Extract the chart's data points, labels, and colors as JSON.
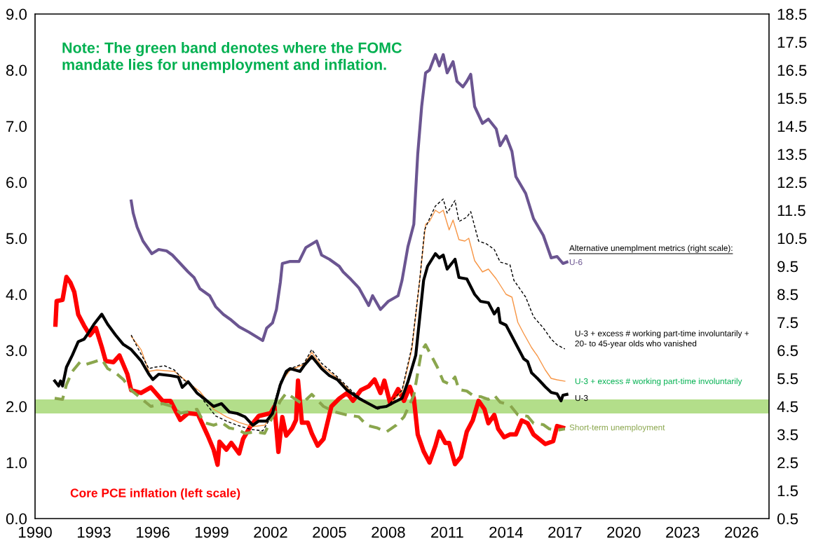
{
  "chart_data": {
    "type": "line",
    "annotations": [
      "Note: The green band denotes where the FOMC mandate lies for unemployment and inflation.",
      "Alternative unemplment metrics (right scale):"
    ],
    "xlim": [
      1990,
      2027.4
    ],
    "xticks": [
      1990,
      1993,
      1996,
      1999,
      2002,
      2005,
      2008,
      2011,
      2014,
      2017,
      2020,
      2023,
      2026
    ],
    "ylim": [
      0,
      9
    ],
    "yticks": [
      {
        "value": 0,
        "label": "0.0"
      },
      {
        "value": 1,
        "label": "1.0"
      },
      {
        "value": 2,
        "label": "2.0"
      },
      {
        "value": 3,
        "label": "3.0"
      },
      {
        "value": 4,
        "label": "4.0"
      },
      {
        "value": 5,
        "label": "5.0"
      },
      {
        "value": 6,
        "label": "6.0"
      },
      {
        "value": 7,
        "label": "7.0"
      },
      {
        "value": 8,
        "label": "8.0"
      },
      {
        "value": 9,
        "label": "9.0"
      }
    ],
    "y2lim": [
      0.5,
      18.5
    ],
    "y2ticks": [
      0.5,
      1.5,
      2.5,
      3.5,
      4.5,
      5.5,
      6.5,
      7.5,
      8.5,
      9.5,
      10.5,
      11.5,
      12.5,
      13.5,
      14.5,
      15.5,
      16.5,
      17.5,
      18.5
    ],
    "grid": false,
    "legend": false,
    "bands": [
      {
        "axis": "y",
        "from": 1.875,
        "to": 2.125,
        "color": "#b3de8a"
      }
    ],
    "series": [
      {
        "name": "Core PCE inflation (left scale)",
        "color": "#ff0000",
        "x": [
          1991.04,
          1991.1,
          1991.4,
          1991.6,
          1991.8,
          1992.0,
          1992.2,
          1992.5,
          1992.8,
          1993.1,
          1993.4,
          1993.6,
          1994.0,
          1994.3,
          1994.7,
          1994.9,
          1995.4,
          1995.9,
          1996.5,
          1996.9,
          1997.4,
          1997.8,
          1998.3,
          1998.8,
          1999.1,
          1999.3,
          1999.4,
          1999.75,
          2000.0,
          2000.4,
          2000.6,
          2001.0,
          2001.4,
          2002.0,
          2002.2,
          2002.4,
          2002.6,
          2002.8,
          2003.1,
          2003.3,
          2003.4,
          2003.6,
          2003.9,
          2004.1,
          2004.4,
          2004.7,
          2005.1,
          2005.5,
          2005.9,
          2006.2,
          2006.6,
          2007.0,
          2007.3,
          2007.6,
          2007.8,
          2008.1,
          2008.5,
          2008.8,
          2009.1,
          2009.3,
          2009.5,
          2009.8,
          2010.1,
          2010.4,
          2010.6,
          2010.9,
          2011.1,
          2011.4,
          2011.7,
          2012.0,
          2012.3,
          2012.6,
          2012.9,
          2013.1,
          2013.4,
          2013.6,
          2013.9,
          2014.2,
          2014.5,
          2014.8,
          2015.1,
          2015.4,
          2016.0,
          2016.4,
          2016.6,
          2016.9
        ],
        "values": [
          3.46,
          3.88,
          3.9,
          4.31,
          4.21,
          4.04,
          3.64,
          3.44,
          3.27,
          3.4,
          3.06,
          2.81,
          2.79,
          2.91,
          2.58,
          2.29,
          2.24,
          2.34,
          2.1,
          2.1,
          1.76,
          1.88,
          1.86,
          1.48,
          1.23,
          0.96,
          1.37,
          1.23,
          1.35,
          1.16,
          1.42,
          1.66,
          1.83,
          1.88,
          2.0,
          1.19,
          1.81,
          1.48,
          1.61,
          1.76,
          2.46,
          1.71,
          1.71,
          1.52,
          1.3,
          1.42,
          2.0,
          2.14,
          2.24,
          2.1,
          2.29,
          2.36,
          2.48,
          2.24,
          2.46,
          2.05,
          2.31,
          2.1,
          2.35,
          2.15,
          1.5,
          1.2,
          1.0,
          1.3,
          1.55,
          1.35,
          1.35,
          0.97,
          1.1,
          1.55,
          1.75,
          2.1,
          1.95,
          1.7,
          1.85,
          1.6,
          1.45,
          1.5,
          1.5,
          1.75,
          1.7,
          1.5,
          1.33,
          1.38,
          1.65,
          1.62
        ]
      },
      {
        "name": "U-6",
        "color": "#6b5591",
        "axis": "y2",
        "x": [
          1994.9,
          1995.0,
          1995.2,
          1995.5,
          1995.7,
          1995.95,
          1996.3,
          1996.7,
          1997.0,
          1997.4,
          1997.8,
          1998.1,
          1998.4,
          1998.9,
          1999.2,
          1999.6,
          2000.0,
          2000.4,
          2000.9,
          2001.25,
          2001.6,
          2001.8,
          2002.1,
          2002.3,
          2002.5,
          2002.6,
          2002.97,
          2003.45,
          2003.8,
          2004.35,
          2004.6,
          2005.0,
          2005.5,
          2005.7,
          2006.1,
          2006.5,
          2007.0,
          2007.2,
          2007.6,
          2008.0,
          2008.5,
          2008.7,
          2009.0,
          2009.3,
          2009.5,
          2009.7,
          2009.9,
          2010.1,
          2010.4,
          2010.6,
          2010.8,
          2011.0,
          2011.3,
          2011.5,
          2011.8,
          2012.0,
          2012.2,
          2012.4,
          2012.8,
          2013.1,
          2013.5,
          2013.7,
          2014.0,
          2014.3,
          2014.5,
          2015.0,
          2015.4,
          2015.9,
          2016.3,
          2016.6,
          2016.9,
          2017.1
        ],
        "values": [
          11.83,
          11.4,
          10.9,
          10.4,
          10.2,
          9.95,
          10.1,
          10.05,
          9.9,
          9.6,
          9.3,
          9.1,
          8.7,
          8.45,
          8.06,
          7.78,
          7.58,
          7.34,
          7.15,
          7.0,
          6.85,
          7.29,
          7.48,
          7.96,
          8.93,
          9.6,
          9.67,
          9.67,
          10.17,
          10.4,
          9.9,
          9.75,
          9.5,
          9.3,
          9.03,
          8.73,
          8.1,
          8.45,
          7.96,
          8.25,
          8.45,
          9.0,
          10.2,
          11.0,
          13.5,
          15.2,
          16.4,
          16.5,
          17.05,
          16.65,
          17.05,
          16.4,
          16.8,
          16.1,
          15.9,
          16.1,
          16.35,
          15.2,
          14.6,
          14.75,
          14.4,
          13.8,
          14.15,
          13.6,
          12.7,
          12.1,
          11.2,
          10.6,
          9.8,
          9.85,
          9.6,
          9.65
        ]
      },
      {
        "name": "U-3 + excess # working part-time involuntarily + 20- to 45-year olds who vanished",
        "color": "#000000",
        "axis": "y2",
        "line_style": "dashed",
        "x": [
          1994.9,
          1995.2,
          1995.8,
          1996.1,
          1996.6,
          1997.1,
          1997.55,
          1998.1,
          1998.6,
          1999.2,
          1999.75,
          2000.3,
          2001.0,
          2001.6,
          2001.95,
          2002.5,
          2003.0,
          2003.7,
          2004.1,
          2004.6,
          2005.4,
          2006.1,
          2006.75,
          2007.45,
          2008.0,
          2008.7,
          2009.2,
          2009.6,
          2009.85,
          2010.1,
          2010.4,
          2010.8,
          2011.0,
          2011.4,
          2011.6,
          2012.0,
          2012.2,
          2012.6,
          2013.0,
          2013.4,
          2013.7,
          2014.2,
          2014.4,
          2014.6,
          2015.0,
          2015.4,
          2015.9,
          2016.3,
          2016.6,
          2017.0
        ],
        "values": [
          7.05,
          6.63,
          5.85,
          5.9,
          5.95,
          5.8,
          5.46,
          5.18,
          4.7,
          4.16,
          3.98,
          3.83,
          3.68,
          3.63,
          4.03,
          5.38,
          5.85,
          6.04,
          6.53,
          6.04,
          5.56,
          5.08,
          4.7,
          4.4,
          4.55,
          5.08,
          6.63,
          9.0,
          10.8,
          11.2,
          11.65,
          11.9,
          11.4,
          11.85,
          11.1,
          11.25,
          11.45,
          10.4,
          10.3,
          10.1,
          9.65,
          9.55,
          9.0,
          8.8,
          8.4,
          7.7,
          7.3,
          6.9,
          6.7,
          6.55
        ]
      },
      {
        "name": "U-3 + excess # working part-time involuntarily",
        "color": "#f79646",
        "axis": "y2",
        "x": [
          1994.9,
          1995.4,
          1995.8,
          1996.2,
          1997.1,
          1997.7,
          1998.4,
          1999.1,
          1999.75,
          2000.4,
          2001.1,
          2001.7,
          2002.1,
          2002.5,
          2003.0,
          2003.7,
          2004.1,
          2004.6,
          2005.4,
          2006.1,
          2006.75,
          2007.45,
          2008.0,
          2008.7,
          2009.2,
          2009.6,
          2009.9,
          2010.1,
          2010.4,
          2010.6,
          2010.8,
          2011.1,
          2011.3,
          2011.6,
          2011.9,
          2012.1,
          2012.4,
          2012.8,
          2013.1,
          2013.5,
          2014.0,
          2014.3,
          2014.6,
          2014.9,
          2015.3,
          2015.6,
          2016.0,
          2016.3,
          2016.6,
          2017.0
        ],
        "values": [
          7.0,
          6.53,
          5.75,
          5.8,
          5.75,
          5.41,
          5.03,
          4.4,
          4.13,
          3.93,
          3.78,
          3.83,
          4.21,
          5.33,
          5.8,
          6.0,
          6.43,
          5.95,
          5.51,
          5.03,
          4.65,
          4.43,
          4.53,
          5.03,
          6.53,
          9.0,
          11.0,
          11.1,
          11.5,
          11.4,
          11.5,
          10.8,
          11.15,
          10.45,
          10.4,
          10.5,
          9.7,
          9.3,
          9.4,
          9.05,
          8.5,
          8.4,
          7.5,
          7.1,
          6.6,
          6.3,
          5.8,
          5.5,
          5.45,
          5.4
        ]
      },
      {
        "name": "U-3",
        "color": "#000000",
        "axis": "y2",
        "x": [
          1991.0,
          1991.2,
          1991.3,
          1991.4,
          1991.6,
          1991.9,
          1992.2,
          1992.5,
          1992.7,
          1993.0,
          1993.4,
          1993.7,
          1994.1,
          1994.5,
          1994.9,
          1995.4,
          1995.8,
          1996.0,
          1996.3,
          1996.9,
          1997.3,
          1997.5,
          1997.8,
          1998.25,
          1998.6,
          1999.1,
          1999.5,
          1999.9,
          2000.3,
          2000.7,
          2001.1,
          2001.4,
          2001.8,
          2002.1,
          2002.5,
          2002.8,
          2003.0,
          2003.5,
          2003.7,
          2004.1,
          2004.6,
          2005.0,
          2005.4,
          2005.9,
          2006.5,
          2007.0,
          2007.4,
          2007.9,
          2008.3,
          2008.7,
          2009.0,
          2009.4,
          2009.8,
          2010.0,
          2010.4,
          2010.6,
          2010.8,
          2011.0,
          2011.4,
          2011.6,
          2012.0,
          2012.4,
          2012.7,
          2013.1,
          2013.4,
          2013.6,
          2013.7,
          2014.0,
          2014.3,
          2014.6,
          2014.9,
          2015.1,
          2015.3,
          2015.6,
          2016.0,
          2016.3,
          2016.6,
          2016.8,
          2016.9,
          2017.1
        ],
        "values": [
          5.41,
          5.23,
          5.41,
          5.23,
          5.9,
          6.33,
          6.81,
          6.9,
          7.1,
          7.43,
          7.79,
          7.43,
          7.05,
          6.71,
          6.53,
          6.13,
          5.65,
          5.46,
          5.65,
          5.6,
          5.55,
          5.18,
          5.38,
          4.98,
          4.79,
          4.5,
          4.6,
          4.3,
          4.25,
          4.13,
          3.83,
          3.98,
          3.98,
          4.25,
          5.28,
          5.75,
          5.85,
          5.75,
          5.95,
          6.28,
          5.85,
          5.6,
          5.46,
          5.08,
          4.79,
          4.6,
          4.45,
          4.5,
          4.65,
          4.79,
          5.38,
          6.33,
          9.0,
          9.5,
          9.95,
          9.8,
          9.9,
          9.4,
          9.75,
          9.1,
          9.05,
          8.5,
          8.25,
          8.2,
          7.8,
          8.0,
          7.5,
          7.4,
          7.0,
          6.6,
          6.2,
          6.1,
          5.7,
          5.5,
          5.2,
          5.0,
          4.95,
          4.7,
          4.9,
          4.93
        ]
      },
      {
        "name": "Short-term unemployment",
        "color": "#8aa64d",
        "axis": "y2",
        "line_style": "dashed",
        "x": [
          1991.0,
          1991.4,
          1991.6,
          1991.9,
          1992.3,
          1992.6,
          1993.0,
          1993.4,
          1993.7,
          1994.1,
          1994.5,
          1994.9,
          1995.4,
          1995.9,
          1996.5,
          1997.0,
          1997.4,
          1997.8,
          1998.25,
          1998.6,
          1999.1,
          1999.5,
          1999.9,
          2000.3,
          2000.7,
          2001.2,
          2001.7,
          2002.1,
          2002.5,
          2002.8,
          2003.2,
          2003.6,
          2004.1,
          2004.7,
          2005.25,
          2005.8,
          2006.5,
          2006.9,
          2007.45,
          2007.9,
          2008.4,
          2008.8,
          2009.3,
          2009.5,
          2009.7,
          2009.9,
          2010.2,
          2010.5,
          2010.8,
          2011.1,
          2011.4,
          2011.6,
          2012.0,
          2012.4,
          2012.7,
          2013.1,
          2013.4,
          2013.7,
          2014.2,
          2014.6,
          2015.1,
          2015.4,
          2015.9,
          2016.2,
          2016.6,
          2017.0
        ],
        "values": [
          4.79,
          4.75,
          5.28,
          5.75,
          6.09,
          6.0,
          6.09,
          6.18,
          5.85,
          5.7,
          5.46,
          5.08,
          4.79,
          4.5,
          4.6,
          4.5,
          4.26,
          4.31,
          4.4,
          3.93,
          3.83,
          3.93,
          3.73,
          3.68,
          3.54,
          3.59,
          3.54,
          4.13,
          4.7,
          4.98,
          4.79,
          4.6,
          4.93,
          4.5,
          4.31,
          4.21,
          4.13,
          3.83,
          3.73,
          3.59,
          3.83,
          4.13,
          4.9,
          5.7,
          6.5,
          6.7,
          6.3,
          5.9,
          5.4,
          5.3,
          5.55,
          5.1,
          5.05,
          4.85,
          4.85,
          4.75,
          4.9,
          4.65,
          4.55,
          4.2,
          4.15,
          3.9,
          3.85,
          3.7,
          3.65,
          3.7
        ]
      }
    ]
  }
}
